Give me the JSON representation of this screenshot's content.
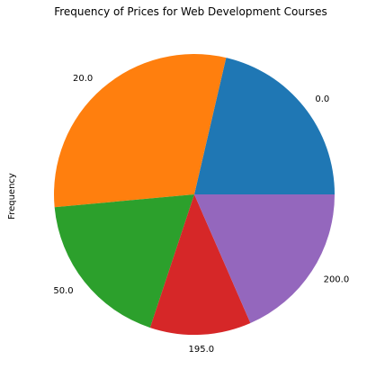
{
  "chart_data": {
    "type": "pie",
    "title": "Frequency of Prices for Web Development Courses",
    "ylabel": "Frequency",
    "categories": [
      "0.0",
      "20.0",
      "50.0",
      "195.0",
      "200.0"
    ],
    "values": [
      22,
      31,
      19,
      12,
      19
    ],
    "colors": [
      "#1f77b4",
      "#ff7f0e",
      "#2ca02c",
      "#d62728",
      "#9467bd"
    ],
    "start_angle_deg": 0,
    "direction": "counterclockwise"
  }
}
